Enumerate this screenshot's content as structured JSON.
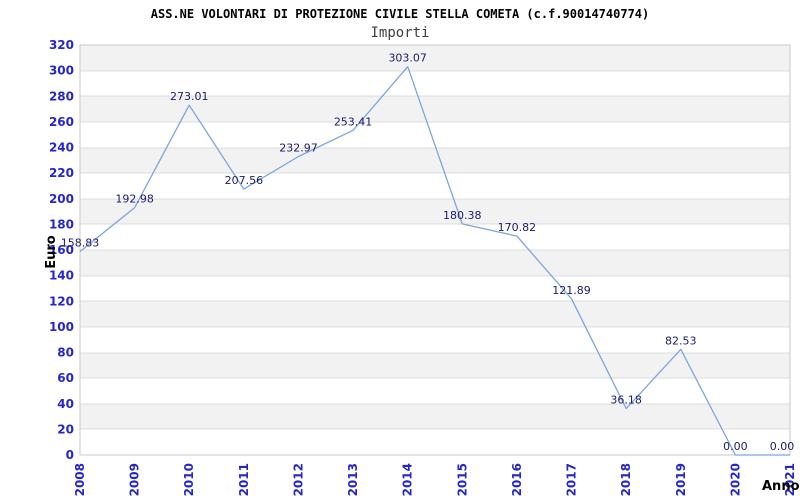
{
  "title": "ASS.NE VOLONTARI DI PROTEZIONE CIVILE STELLA COMETA (c.f.90014740774)",
  "subtitle": "Importi",
  "chart_data": {
    "type": "line",
    "x": [
      "2008",
      "2009",
      "2010",
      "2011",
      "2012",
      "2013",
      "2014",
      "2015",
      "2016",
      "2017",
      "2018",
      "2019",
      "2020",
      "2021"
    ],
    "values": [
      158.83,
      192.98,
      273.01,
      207.56,
      232.97,
      253.41,
      303.07,
      180.38,
      170.82,
      121.89,
      36.18,
      82.53,
      0.0,
      0.0
    ],
    "point_labels": [
      "158.83",
      "192.98",
      "273.01",
      "207.56",
      "232.97",
      "253.41",
      "303.07",
      "180.38",
      "170.82",
      "121.89",
      "36.18",
      "82.53",
      "0.00",
      "0.00"
    ],
    "title": "Importi",
    "xlabel": "Anno",
    "ylabel": "Euro",
    "ylim": [
      0,
      320
    ],
    "ytick_step": 20,
    "yticks": [
      0,
      20,
      40,
      60,
      80,
      100,
      120,
      140,
      160,
      180,
      200,
      220,
      240,
      260,
      280,
      300,
      320
    ],
    "grid": "horizontal",
    "banded_background": true,
    "legend": null
  },
  "colors": {
    "line": "#7ba6e0",
    "tick_label": "#2525cc",
    "point_label": "#1b1b70",
    "band": "#f2f2f2",
    "grid": "#dcdcdc",
    "plot_border": "#c9c9c9",
    "title": "#000000",
    "subtitle": "#3f3f3f",
    "axis_title": "#000000",
    "background": "#ffffff"
  }
}
